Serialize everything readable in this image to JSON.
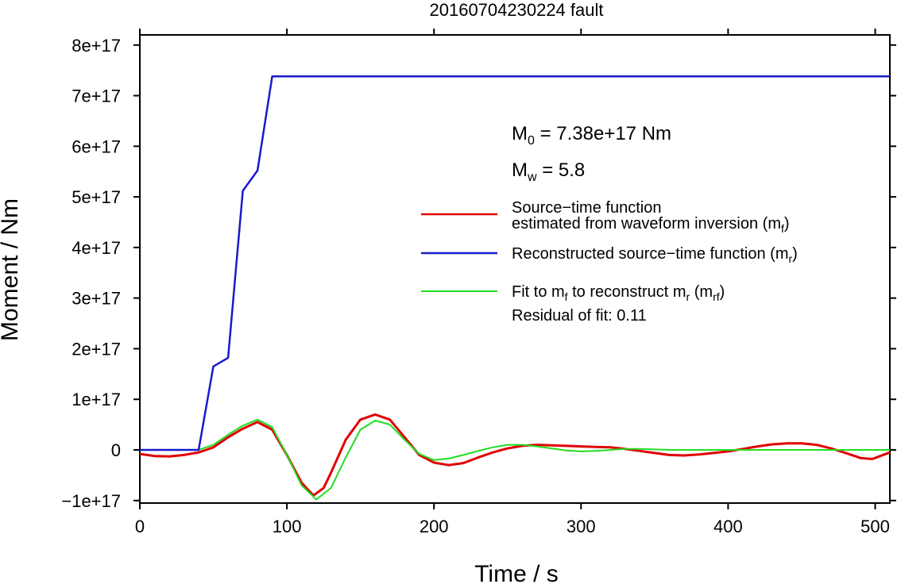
{
  "chart_data": {
    "type": "line",
    "title": "20160704230224 fault",
    "xlabel": "Time / s",
    "ylabel": "Moment / Nm",
    "xlim": [
      0,
      510
    ],
    "ylim": [
      -1.05e+17,
      8.2e+17
    ],
    "x_ticks": [
      0,
      100,
      200,
      300,
      400,
      500
    ],
    "x_tick_labels": [
      "0",
      "100",
      "200",
      "300",
      "400",
      "500"
    ],
    "y_ticks": [
      -1e+17,
      0,
      1e+17,
      2e+17,
      3e+17,
      4e+17,
      5e+17,
      6e+17,
      7e+17,
      8e+17
    ],
    "y_tick_labels": [
      "−1e+17",
      "0",
      "1e+17",
      "2e+17",
      "3e+17",
      "4e+17",
      "5e+17",
      "6e+17",
      "7e+17",
      "8e+17"
    ],
    "grid": false,
    "legend_position": "right",
    "annotations": {
      "m0_prefix": "M",
      "m0_sub": "0",
      "m0_rest": " = 7.38e+17 Nm",
      "mw_prefix": "M",
      "mw_sub": "w",
      "mw_rest": " = 5.8",
      "residual": "Residual of fit: 0.11"
    },
    "series": [
      {
        "name": "Source−time function estimated from waveform inversion (mf)",
        "legend_line1": "Source−time function",
        "legend_line2_main": "estimated from waveform inversion (m",
        "legend_line2_sub": "f",
        "legend_line2_end": ")",
        "color": "#e00000",
        "x": [
          0,
          10,
          20,
          30,
          40,
          50,
          60,
          70,
          80,
          90,
          100,
          110,
          118,
          125,
          130,
          140,
          150,
          160,
          170,
          180,
          190,
          200,
          210,
          220,
          230,
          240,
          250,
          260,
          270,
          280,
          290,
          300,
          310,
          320,
          330,
          340,
          350,
          360,
          370,
          380,
          390,
          400,
          410,
          420,
          430,
          440,
          450,
          460,
          470,
          480,
          490,
          498,
          510
        ],
        "y": [
          -8000000000000000.0,
          -1.2e+16,
          -1.3e+16,
          -1e+16,
          -5000000000000000.0,
          5000000000000000.0,
          2.5e+16,
          4.2e+16,
          5.5e+16,
          4e+16,
          -1e+16,
          -6.5e+16,
          -9e+16,
          -7.5e+16,
          -4.5e+16,
          2e+16,
          6e+16,
          7e+16,
          6e+16,
          2.5e+16,
          -1e+16,
          -2.5e+16,
          -3e+16,
          -2.6e+16,
          -1.5e+16,
          -5000000000000000.0,
          3000000000000000.0,
          8000000000000000.0,
          1e+16,
          9000000000000000.0,
          8000000000000000.0,
          7000000000000000.0,
          6000000000000000.0,
          5000000000000000.0,
          2000000000000000.0,
          -2000000000000000.0,
          -6000000000000000.0,
          -1e+16,
          -1.1e+16,
          -9000000000000000.0,
          -6000000000000000.0,
          -3000000000000000.0,
          2000000000000000.0,
          7000000000000000.0,
          1.1e+16,
          1.3e+16,
          1.3e+16,
          1e+16,
          3000000000000000.0,
          -6000000000000000.0,
          -1.6e+16,
          -1.8e+16,
          -5000000000000000.0
        ]
      },
      {
        "name": "Reconstructed source−time function (mr)",
        "legend_main": "Reconstructed source−time function (m",
        "legend_sub": "r",
        "legend_end": ")",
        "color": "#1a1acc",
        "x": [
          0,
          40,
          50,
          60,
          70,
          80,
          90,
          510
        ],
        "y": [
          0,
          0,
          1.65e+17,
          1.82e+17,
          5.12e+17,
          5.52e+17,
          7.38e+17,
          7.38e+17
        ]
      },
      {
        "name": "Fit to mf to reconstruct mr (mrf)",
        "legend_a": "Fit to m",
        "legend_a_sub": "f",
        "legend_b": " to reconstruct m",
        "legend_b_sub": "r",
        "legend_c": " (m",
        "legend_c_sub": "rf",
        "legend_d": ")",
        "color": "#22dd22",
        "x": [
          0,
          40,
          50,
          60,
          70,
          80,
          90,
          100,
          110,
          120,
          130,
          140,
          150,
          160,
          170,
          180,
          190,
          200,
          210,
          220,
          230,
          240,
          250,
          260,
          270,
          280,
          290,
          300,
          310,
          320,
          330,
          340,
          350,
          360,
          400,
          450,
          510
        ],
        "y": [
          0,
          0,
          1e+16,
          3e+16,
          4.8e+16,
          6e+16,
          4.5e+16,
          -1e+16,
          -7e+16,
          -9.8e+16,
          -7.5e+16,
          -1.5e+16,
          4e+16,
          5.8e+16,
          5e+16,
          2e+16,
          -8000000000000000.0,
          -2e+16,
          -1.7e+16,
          -1e+16,
          -2000000000000000.0,
          5000000000000000.0,
          1e+16,
          1e+16,
          7000000000000000.0,
          3000000000000000.0,
          -1000000000000000.0,
          -3000000000000000.0,
          -2000000000000000.0,
          0.0,
          2000000000000000.0,
          2000000000000000.0,
          1000000000000000.0,
          0.0,
          0.0,
          0.0,
          0.0
        ]
      }
    ]
  }
}
